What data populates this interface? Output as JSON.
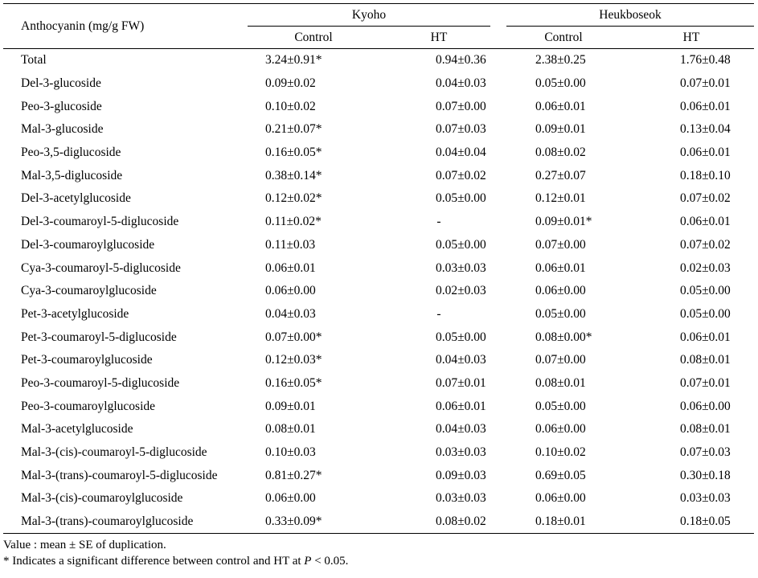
{
  "table": {
    "row_header_label": "Anthocyanin (mg/g FW)",
    "groups": [
      "Kyoho",
      "Heukboseok"
    ],
    "columns": [
      "Control",
      "HT",
      "Control",
      "HT"
    ],
    "rows": [
      {
        "name": "Total",
        "values": [
          "3.24±0.91*",
          "0.94±0.36",
          "2.38±0.25",
          "1.76±0.48"
        ]
      },
      {
        "name": "Del-3-glucoside",
        "values": [
          "0.09±0.02",
          "0.04±0.03",
          "0.05±0.00",
          "0.07±0.01"
        ]
      },
      {
        "name": "Peo-3-glucoside",
        "values": [
          "0.10±0.02",
          "0.07±0.00",
          "0.06±0.01",
          "0.06±0.01"
        ]
      },
      {
        "name": "Mal-3-glucoside",
        "values": [
          "0.21±0.07*",
          "0.07±0.03",
          "0.09±0.01",
          "0.13±0.04"
        ]
      },
      {
        "name": "Peo-3,5-diglucoside",
        "values": [
          "0.16±0.05*",
          "0.04±0.04",
          "0.08±0.02",
          "0.06±0.01"
        ]
      },
      {
        "name": "Mal-3,5-diglucoside",
        "values": [
          "0.38±0.14*",
          "0.07±0.02",
          "0.27±0.07",
          "0.18±0.10"
        ]
      },
      {
        "name": "Del-3-acetylglucoside",
        "values": [
          "0.12±0.02*",
          "0.05±0.00",
          "0.12±0.01",
          "0.07±0.02"
        ]
      },
      {
        "name": "Del-3-coumaroyl-5-diglucoside",
        "values": [
          "0.11±0.02*",
          "-",
          "0.09±0.01*",
          "0.06±0.01"
        ]
      },
      {
        "name": "Del-3-coumaroylglucoside",
        "values": [
          "0.11±0.03",
          "0.05±0.00",
          "0.07±0.00",
          "0.07±0.02"
        ]
      },
      {
        "name": "Cya-3-coumaroyl-5-diglucoside",
        "values": [
          "0.06±0.01",
          "0.03±0.03",
          "0.06±0.01",
          "0.02±0.03"
        ]
      },
      {
        "name": "Cya-3-coumaroylglucoside",
        "values": [
          "0.06±0.00",
          "0.02±0.03",
          "0.06±0.00",
          "0.05±0.00"
        ]
      },
      {
        "name": "Pet-3-acetylglucoside",
        "values": [
          "0.04±0.03",
          "-",
          "0.05±0.00",
          "0.05±0.00"
        ]
      },
      {
        "name": "Pet-3-coumaroyl-5-diglucoside",
        "values": [
          "0.07±0.00*",
          "0.05±0.00",
          "0.08±0.00*",
          "0.06±0.01"
        ]
      },
      {
        "name": "Pet-3-coumaroylglucoside",
        "values": [
          "0.12±0.03*",
          "0.04±0.03",
          "0.07±0.00",
          "0.08±0.01"
        ]
      },
      {
        "name": "Peo-3-coumaroyl-5-diglucoside",
        "values": [
          "0.16±0.05*",
          "0.07±0.01",
          "0.08±0.01",
          "0.07±0.01"
        ]
      },
      {
        "name": "Peo-3-coumaroylglucoside",
        "values": [
          "0.09±0.01",
          "0.06±0.01",
          "0.05±0.00",
          "0.06±0.00"
        ]
      },
      {
        "name": "Mal-3-acetylglucoside",
        "values": [
          "0.08±0.01",
          "0.04±0.03",
          "0.06±0.00",
          "0.08±0.01"
        ]
      },
      {
        "name": "Mal-3-(cis)-coumaroyl-5-diglucoside",
        "values": [
          "0.10±0.03",
          "0.03±0.03",
          "0.10±0.02",
          "0.07±0.03"
        ]
      },
      {
        "name": "Mal-3-(trans)-coumaroyl-5-diglucoside",
        "values": [
          "0.81±0.27*",
          "0.09±0.03",
          "0.69±0.05",
          "0.30±0.18"
        ]
      },
      {
        "name": "Mal-3-(cis)-coumaroylglucoside",
        "values": [
          "0.06±0.00",
          "0.03±0.03",
          "0.06±0.00",
          "0.03±0.03"
        ]
      },
      {
        "name": "Mal-3-(trans)-coumaroylglucoside",
        "values": [
          "0.33±0.09*",
          "0.08±0.02",
          "0.18±0.01",
          "0.18±0.05"
        ]
      }
    ]
  },
  "notes": {
    "value_note": "Value : mean ± SE of duplication.",
    "sig_prefix": "* Indicates a significant difference between control and HT at ",
    "sig_var": "P",
    "sig_suffix": " < 0.05."
  }
}
